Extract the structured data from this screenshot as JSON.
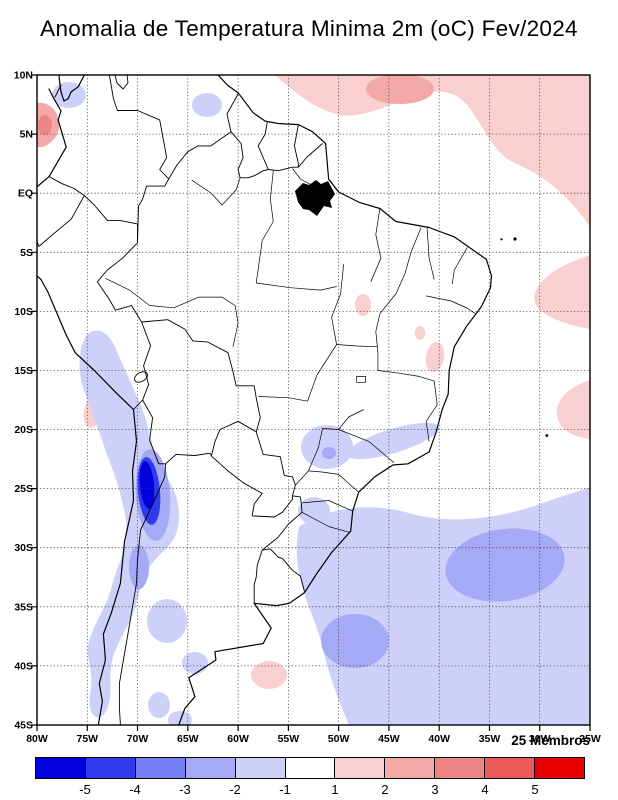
{
  "title": "Anomalia de Temperatura Minima 2m (oC) Fev/2024",
  "map": {
    "y_axis_labels": [
      "10N",
      "5N",
      "EQ",
      "5S",
      "10S",
      "15S",
      "20S",
      "25S",
      "30S",
      "35S",
      "40S",
      "45S"
    ],
    "x_axis_labels": [
      "80W",
      "75W",
      "70W",
      "65W",
      "60W",
      "55W",
      "50W",
      "45W",
      "40W",
      "35W",
      "30W",
      "25W"
    ]
  },
  "legend": {
    "members_label": "25 Membros",
    "tick_labels": [
      "-5",
      "-4",
      "-3",
      "-2",
      "-1",
      "1",
      "2",
      "3",
      "4",
      "5"
    ],
    "colors": [
      "#0000dc",
      "#2e3cec",
      "#7680f2",
      "#a4aaf6",
      "#cdd1fa",
      "#ffffff",
      "#f9cfcf",
      "#f4a9a9",
      "#ef8484",
      "#ea5a5a",
      "#e60000"
    ]
  },
  "chart_data": {
    "type": "heatmap",
    "title": "Anomalia de Temperatura Minima 2m (oC) Fev/2024",
    "units": "oC",
    "variable": "2 m minimum temperature anomaly",
    "period": "Fev/2024",
    "ensemble": "25 Membros",
    "contour_levels": [
      -5,
      -4,
      -3,
      -2,
      -1,
      1,
      2,
      3,
      4,
      5
    ],
    "palette": [
      "#0000dc",
      "#2e3cec",
      "#7680f2",
      "#a4aaf6",
      "#cdd1fa",
      "#ffffff",
      "#f9cfcf",
      "#f4a9a9",
      "#ef8484",
      "#ea5a5a",
      "#e60000"
    ],
    "lon_range": [
      "80W",
      "25W"
    ],
    "lat_range": [
      "45S",
      "10N"
    ],
    "grid_spacing_deg": 5,
    "features": [
      {
        "region": "Andes, northern Chile / NW Argentina (~69W, 22S-28S)",
        "anomaly_oC": "-4 to below -5 (core)"
      },
      {
        "region": "Andes foothill band along Chile-Argentina border, 13S-45S",
        "anomaly_oC": "-1 to -2"
      },
      {
        "region": "South Atlantic, 25S-45S / 55W-25W",
        "anomaly_oC": "-1 to -2"
      },
      {
        "region": "South Atlantic core near 31S 33W and 38S 48W",
        "anomaly_oC": "-2 to -3"
      },
      {
        "region": "SE Brazil / coastal band (~51W, 20S-24S)",
        "anomaly_oC": "-1 to -2"
      },
      {
        "region": "central Argentina patches (35S-43S)",
        "anomaly_oC": "-1 to -2"
      },
      {
        "region": "tropical Atlantic north of equator (top right)",
        "anomaly_oC": "+1 to +2"
      },
      {
        "region": "Pacific coast of Colombia (~78W, 4N-7N)",
        "anomaly_oC": "+2 to +4"
      },
      {
        "region": "Atlantic off NE Brazil (35W-25W, 5S-12S)",
        "anomaly_oC": "+1 to +2"
      },
      {
        "region": "coastal Bahia (~40W, 13S-15S)",
        "anomaly_oC": "+1 to +2"
      },
      {
        "region": "Atlantic near 54W 40S",
        "anomaly_oC": "+1 to +2"
      }
    ]
  }
}
